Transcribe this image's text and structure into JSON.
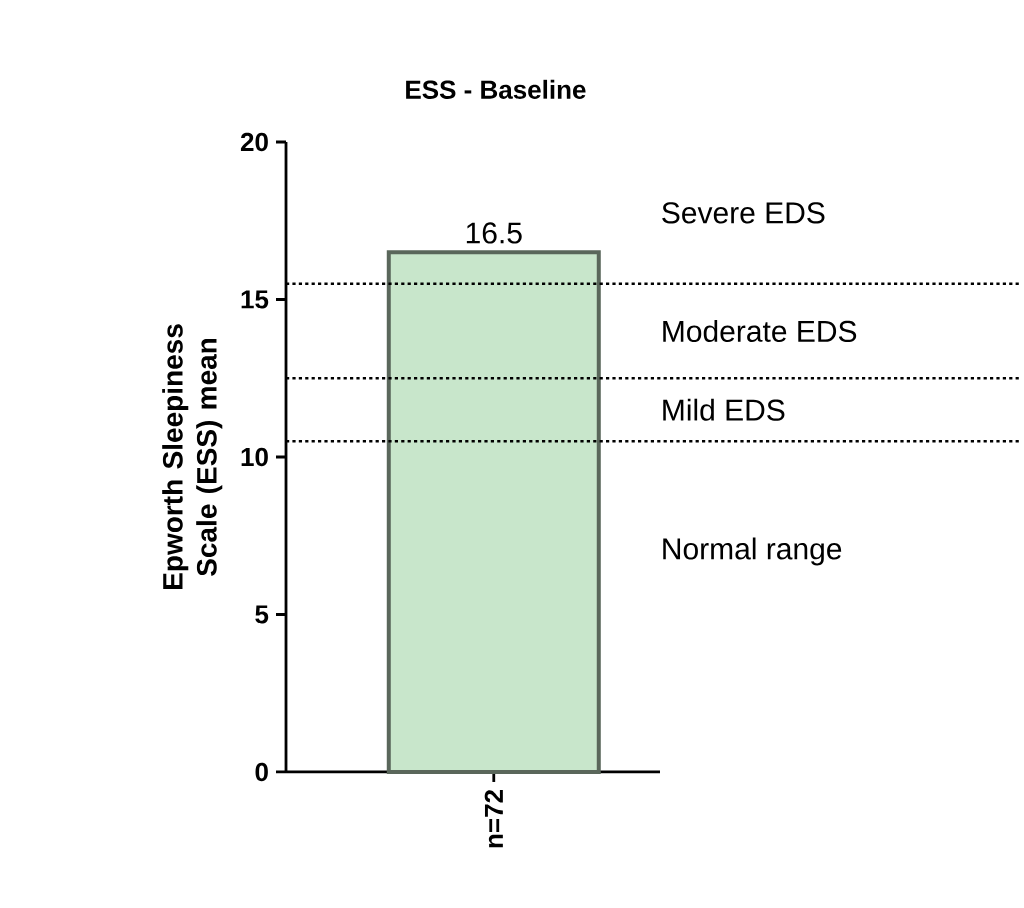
{
  "chart_data": {
    "type": "bar",
    "title": "ESS - Baseline",
    "ylabel": "Epworth Sleepiness Scale (ESS) mean",
    "categories": [
      "n=72"
    ],
    "values": [
      16.5
    ],
    "color": "#c8e6cb",
    "data_labels": true,
    "ylim": [
      0,
      20
    ],
    "yticks": [
      0,
      5,
      10,
      15,
      20
    ],
    "grid": false,
    "ref_lines": [
      {
        "axis": "y",
        "value": 15.5,
        "line_style": "dotted"
      },
      {
        "axis": "y",
        "value": 12.5,
        "line_style": "dotted"
      },
      {
        "axis": "y",
        "value": 10.5,
        "line_style": "dotted"
      }
    ],
    "annotations": [
      "Severe EDS",
      "Moderate EDS",
      "Mild EDS",
      "Normal range"
    ]
  }
}
